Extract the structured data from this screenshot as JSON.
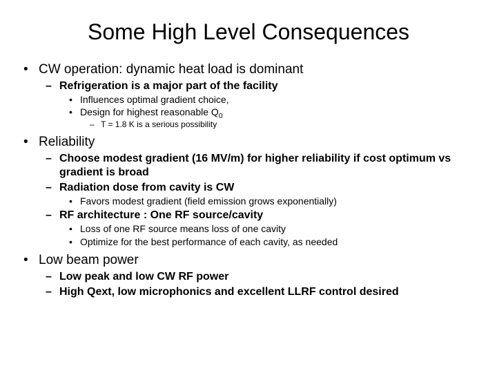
{
  "title": "Some High Level Consequences",
  "bullets": {
    "b1": "CW operation: dynamic heat load is dominant",
    "b1_1": "Refrigeration is a major part of the facility",
    "b1_1_1": "Influences optimal gradient choice,",
    "b1_1_2_pre": "Design for highest reasonable Q",
    "b1_1_2_sub": "0",
    "b1_1_2_1": "T = 1.8 K is a serious possibility",
    "b2": "Reliability",
    "b2_1": "Choose modest gradient (16 MV/m) for higher reliability if cost optimum vs gradient is broad",
    "b2_2": "Radiation dose from cavity is CW",
    "b2_2_1": "Favors modest gradient (field emission grows exponentially)",
    "b2_3": "RF architecture : One RF source/cavity",
    "b2_3_1": "Loss of one RF source means loss of one cavity",
    "b2_3_2": "Optimize for the best performance of each cavity, as needed",
    "b3": "Low beam power",
    "b3_1": "Low peak and low CW RF power",
    "b3_2": "High Qext, low microphonics and excellent LLRF control desired"
  },
  "style": {
    "background": "#ffffff",
    "text_color": "#000000",
    "font_family": "Arial",
    "title_fontsize": 32,
    "l1_fontsize": 19,
    "l2_fontsize": 16,
    "l3_fontsize": 14,
    "l4_fontsize": 12
  }
}
